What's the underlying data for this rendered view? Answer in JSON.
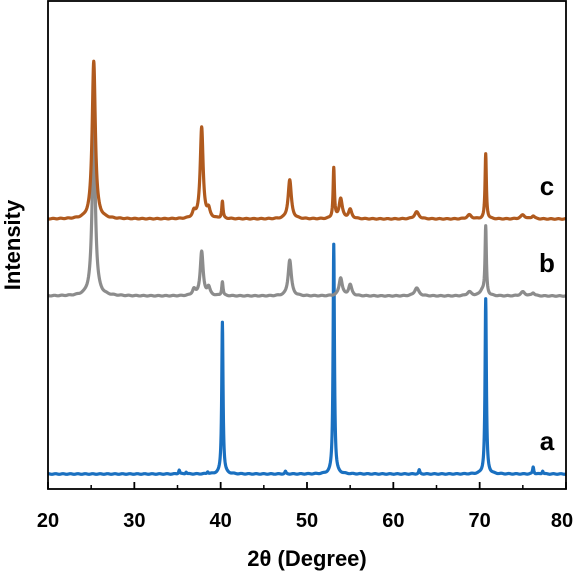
{
  "chart_data": {
    "type": "line",
    "title": "",
    "xlabel": "2θ (Degree)",
    "ylabel": "Intensity",
    "xlim": [
      20,
      80
    ],
    "xticks": [
      20,
      30,
      40,
      50,
      60,
      70,
      80
    ],
    "yticks_shown": false,
    "grid": false,
    "legend": "none",
    "series": [
      {
        "name": "a",
        "color": "#1a70c0",
        "baseline": 0,
        "peaks": [
          {
            "x": 35.2,
            "h": 4,
            "w": 0.08
          },
          {
            "x": 36.0,
            "h": 2,
            "w": 0.08
          },
          {
            "x": 38.5,
            "h": 2,
            "w": 0.08
          },
          {
            "x": 40.2,
            "h": 152,
            "w": 0.09
          },
          {
            "x": 47.5,
            "h": 2.5,
            "w": 0.08
          },
          {
            "x": 53.1,
            "h": 230,
            "w": 0.09
          },
          {
            "x": 63.0,
            "h": 4,
            "w": 0.08
          },
          {
            "x": 70.7,
            "h": 175,
            "w": 0.09
          },
          {
            "x": 76.2,
            "h": 7,
            "w": 0.08
          },
          {
            "x": 77.3,
            "h": 3,
            "w": 0.08
          }
        ]
      },
      {
        "name": "b",
        "color": "#8c8c8c",
        "baseline": 178,
        "peaks": [
          {
            "x": 25.3,
            "h": 168,
            "w": 0.22
          },
          {
            "x": 36.9,
            "h": 6,
            "w": 0.2
          },
          {
            "x": 37.8,
            "h": 44,
            "w": 0.2
          },
          {
            "x": 38.6,
            "h": 8,
            "w": 0.2
          },
          {
            "x": 40.2,
            "h": 14,
            "w": 0.09
          },
          {
            "x": 48.0,
            "h": 36,
            "w": 0.22
          },
          {
            "x": 53.9,
            "h": 18,
            "w": 0.22
          },
          {
            "x": 55.0,
            "h": 11,
            "w": 0.22
          },
          {
            "x": 62.7,
            "h": 8,
            "w": 0.3
          },
          {
            "x": 68.8,
            "h": 4,
            "w": 0.3
          },
          {
            "x": 70.3,
            "h": 5,
            "w": 0.3
          },
          {
            "x": 70.7,
            "h": 68,
            "w": 0.09
          },
          {
            "x": 75.0,
            "h": 4,
            "w": 0.3
          },
          {
            "x": 76.2,
            "h": 3,
            "w": 0.2
          }
        ]
      },
      {
        "name": "c",
        "color": "#b05a1e",
        "baseline": 255,
        "peaks": [
          {
            "x": 25.3,
            "h": 158,
            "w": 0.22
          },
          {
            "x": 36.9,
            "h": 6,
            "w": 0.2
          },
          {
            "x": 37.8,
            "h": 91,
            "w": 0.2
          },
          {
            "x": 38.6,
            "h": 8,
            "w": 0.2
          },
          {
            "x": 40.2,
            "h": 17,
            "w": 0.09
          },
          {
            "x": 48.0,
            "h": 39,
            "w": 0.22
          },
          {
            "x": 53.1,
            "h": 50,
            "w": 0.09
          },
          {
            "x": 53.9,
            "h": 20,
            "w": 0.22
          },
          {
            "x": 55.0,
            "h": 9,
            "w": 0.22
          },
          {
            "x": 62.7,
            "h": 7,
            "w": 0.3
          },
          {
            "x": 68.8,
            "h": 4,
            "w": 0.3
          },
          {
            "x": 70.7,
            "h": 65,
            "w": 0.09
          },
          {
            "x": 75.0,
            "h": 4,
            "w": 0.3
          },
          {
            "x": 76.2,
            "h": 3,
            "w": 0.2
          }
        ]
      }
    ]
  }
}
